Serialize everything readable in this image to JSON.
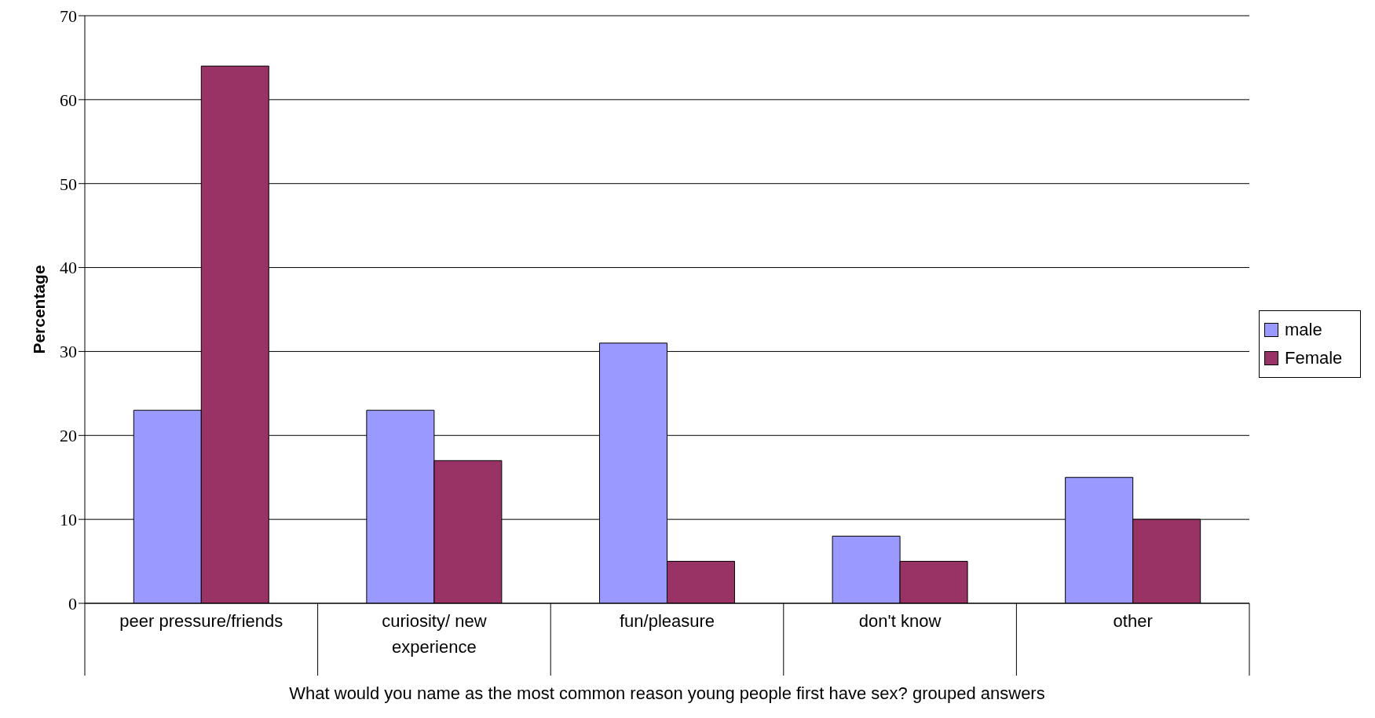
{
  "chart_data": {
    "type": "bar",
    "xlabel": "What would you name as the most common reason young people first have sex? grouped answers",
    "ylabel": "Percentage",
    "categories": [
      "peer pressure/friends",
      "curiosity/ new experience",
      "fun/pleasure",
      "don't know",
      "other"
    ],
    "series": [
      {
        "name": "male",
        "color": "#9999ff",
        "values": [
          23,
          23,
          31,
          8,
          15
        ]
      },
      {
        "name": "Female",
        "color": "#993366",
        "values": [
          64,
          17,
          5,
          5,
          10
        ]
      }
    ],
    "ylim": [
      0,
      70
    ],
    "yticks": [
      0,
      10,
      20,
      30,
      40,
      50,
      60,
      70
    ],
    "grid": "y",
    "legend": "right"
  }
}
